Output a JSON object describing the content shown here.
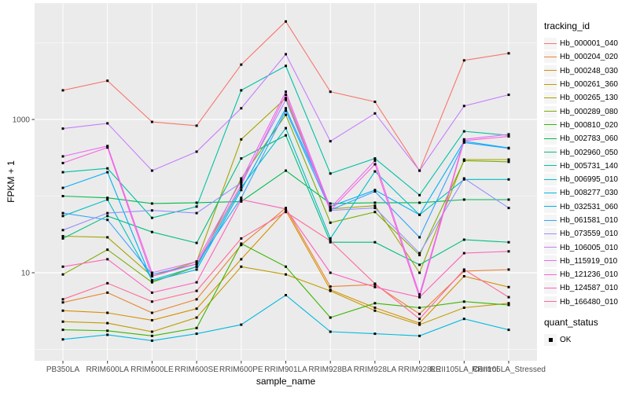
{
  "chart_data": {
    "type": "line",
    "title": "",
    "xlabel": "sample_name",
    "ylabel": "FPKM + 1",
    "y_scale": "log10",
    "y_ticks": [
      1000,
      10
    ],
    "y_tick_labels": [
      "1000",
      "10"
    ],
    "y_minor_gridlines": [
      10000,
      100,
      1
    ],
    "grid": "on",
    "panel_bg": "#EBEBEB",
    "gridline_color": "#FFFFFF",
    "point_color": "#000000",
    "tick_label_color": "#4D4D4D",
    "legend_position": "right",
    "categories": [
      "PB350LA",
      "RRIM600LA",
      "RRIM600LE",
      "RRIM600SE",
      "RRIM600PE",
      "RRIM901LA",
      "RRIM928BA",
      "RRIM928LA",
      "RRIM928LE",
      "RRII105LA_Control",
      "RRII105LA_Stressed"
    ],
    "legend_title": "tracking_id",
    "series": [
      {
        "name": "Hb_000001_040",
        "color": "#F8766D",
        "values": [
          2400,
          3200,
          930,
          830,
          5200,
          19000,
          2300,
          1700,
          215,
          5900,
          7300
        ]
      },
      {
        "name": "Hb_000204_020",
        "color": "#EA8331",
        "values": [
          4.1,
          5.5,
          3.0,
          4.5,
          23,
          70,
          6.6,
          7.0,
          2.9,
          10.5,
          11
        ]
      },
      {
        "name": "Hb_000248_030",
        "color": "#D89000",
        "values": [
          3.2,
          3.0,
          2.4,
          3.4,
          15,
          65,
          6.0,
          3.5,
          2.2,
          9.0,
          6.5
        ]
      },
      {
        "name": "Hb_000261_360",
        "color": "#C09B00",
        "values": [
          2.3,
          2.2,
          1.7,
          2.6,
          12,
          9.5,
          5.8,
          3.2,
          2.1,
          3.5,
          4.0
        ]
      },
      {
        "name": "Hb_000265_130",
        "color": "#A3A500",
        "values": [
          30,
          29,
          9,
          14,
          550,
          1900,
          68,
          75,
          10,
          300,
          300
        ]
      },
      {
        "name": "Hb_000289_080",
        "color": "#7CAE00",
        "values": [
          9.5,
          20,
          7.5,
          12,
          170,
          1150,
          45,
          62,
          17,
          290,
          280
        ]
      },
      {
        "name": "Hb_000810_020",
        "color": "#39B600",
        "values": [
          1.8,
          1.75,
          1.5,
          1.9,
          24,
          12,
          2.6,
          4.0,
          3.5,
          4.2,
          3.8
        ]
      },
      {
        "name": "Hb_002783_060",
        "color": "#00BB4E",
        "values": [
          100,
          95,
          80,
          82,
          85,
          215,
          80,
          82,
          82,
          90,
          90
        ]
      },
      {
        "name": "Hb_002960_050",
        "color": "#00BF7D",
        "values": [
          28,
          55,
          34,
          24.5,
          310,
          620,
          25,
          25,
          12.7,
          27,
          25
        ]
      },
      {
        "name": "Hb_005731_140",
        "color": "#00C1A3",
        "values": [
          205,
          230,
          52,
          73,
          2400,
          5000,
          197,
          310,
          103,
          700,
          620
        ]
      },
      {
        "name": "Hb_006995_010",
        "color": "#00BFC4",
        "values": [
          55,
          90,
          8,
          12,
          130,
          770,
          28,
          210,
          57,
          165,
          165
        ]
      },
      {
        "name": "Hb_008277_030",
        "color": "#00BAE0",
        "values": [
          1.35,
          1.55,
          1.3,
          1.6,
          2.1,
          5.1,
          1.7,
          1.6,
          1.5,
          2.5,
          1.8
        ]
      },
      {
        "name": "Hb_032531_060",
        "color": "#00B0F6",
        "values": [
          128,
          205,
          7.8,
          11,
          120,
          1400,
          73,
          120,
          57,
          520,
          425
        ]
      },
      {
        "name": "Hb_061581_010",
        "color": "#35A2FF",
        "values": [
          60,
          49,
          9.5,
          13,
          95,
          1300,
          66,
          115,
          29,
          500,
          420
        ]
      },
      {
        "name": "Hb_073559_010",
        "color": "#9590FF",
        "values": [
          36,
          60,
          65,
          60,
          150,
          1800,
          65,
          70,
          18,
          170,
          70
        ]
      },
      {
        "name": "Hb_106005_010",
        "color": "#C77CFF",
        "values": [
          760,
          890,
          215,
          380,
          1400,
          7100,
          520,
          1200,
          215,
          1500,
          2100
        ]
      },
      {
        "name": "Hb_115919_010",
        "color": "#E76BF3",
        "values": [
          330,
          450,
          10,
          14,
          160,
          2300,
          70,
          290,
          5.2,
          550,
          640
        ]
      },
      {
        "name": "Hb_121236_010",
        "color": "#FA62DB",
        "values": [
          270,
          430,
          9,
          13,
          140,
          2100,
          65,
          260,
          4.8,
          530,
          600
        ]
      },
      {
        "name": "Hb_124587_010",
        "color": "#FF62BC",
        "values": [
          12,
          15,
          5.5,
          7.5,
          90,
          68,
          10,
          6.5,
          4.8,
          18,
          19
        ]
      },
      {
        "name": "Hb_166480_010",
        "color": "#FF6A98",
        "values": [
          4.5,
          7.3,
          4.2,
          5.8,
          28,
          62,
          26,
          7.2,
          2.5,
          11,
          4.8
        ]
      }
    ],
    "quant_status": {
      "title": "quant_status",
      "label": "OK",
      "marker_color": "#000000"
    }
  }
}
